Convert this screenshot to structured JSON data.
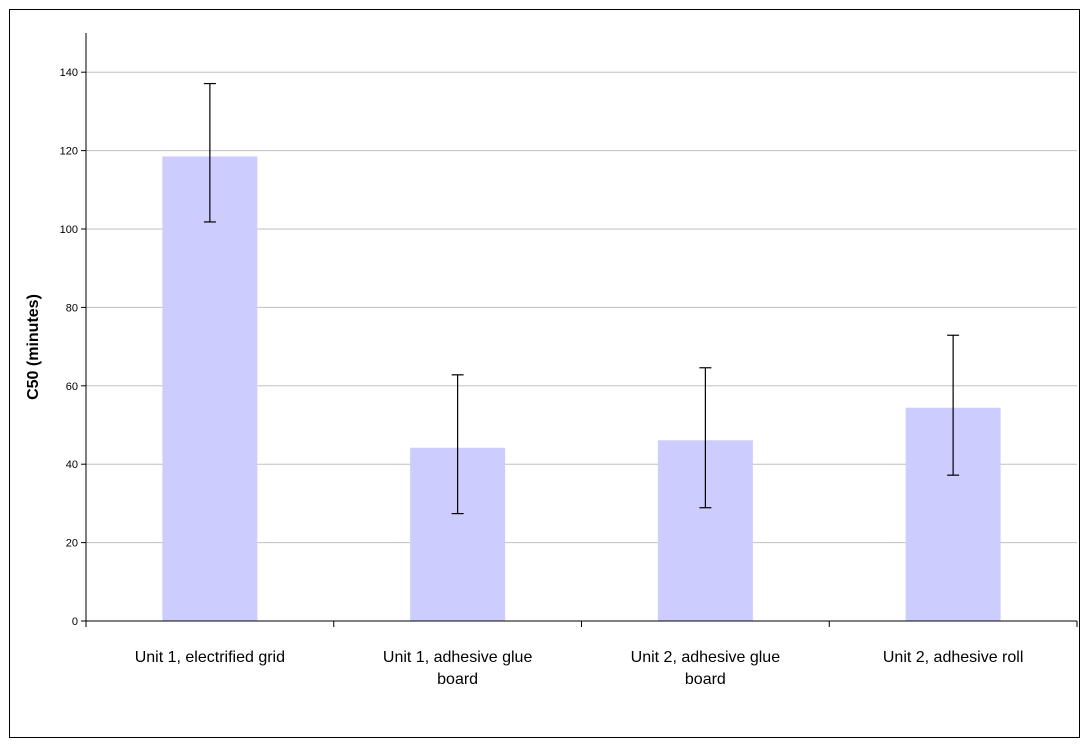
{
  "chart_data": {
    "type": "bar",
    "title": "",
    "xlabel": "",
    "ylabel": "C50 (minutes)",
    "ylim": [
      0,
      150
    ],
    "yticks": [
      0,
      20,
      40,
      60,
      80,
      100,
      120,
      140
    ],
    "grid": true,
    "legend": "none",
    "bar_color": "#CCCCFF",
    "categories": [
      [
        "Unit 1, electrified grid"
      ],
      [
        "Unit 1, adhesive glue",
        "board"
      ],
      [
        "Unit 2, adhesive glue",
        "board"
      ],
      [
        "Unit 2, adhesive roll"
      ]
    ],
    "values": [
      118.5,
      44.2,
      46.1,
      54.4
    ],
    "error_low": [
      101.8,
      27.4,
      28.9,
      37.2
    ],
    "error_high": [
      137.1,
      62.8,
      64.6,
      72.9
    ]
  }
}
